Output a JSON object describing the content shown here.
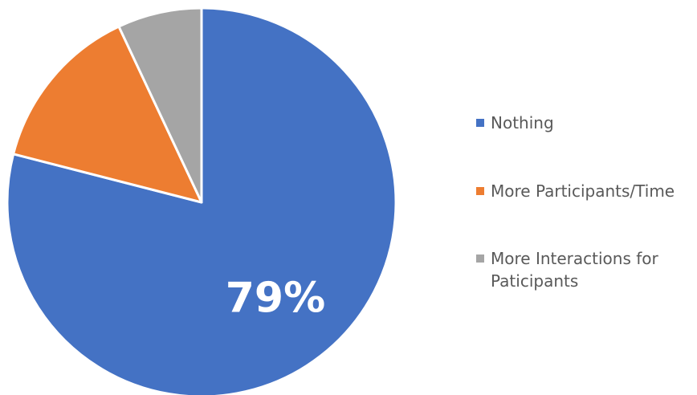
{
  "chart_data": {
    "type": "pie",
    "categories": [
      "Nothing",
      "More Participants/Time",
      "More Interactions for Paticipants"
    ],
    "values": [
      79,
      14,
      7
    ],
    "data_labels": [
      "79%",
      "",
      ""
    ],
    "colors": [
      "#4472C4",
      "#ED7D31",
      "#A5A5A5"
    ],
    "legend_position": "right",
    "start_angle": "12 o'clock",
    "direction": "clockwise"
  }
}
